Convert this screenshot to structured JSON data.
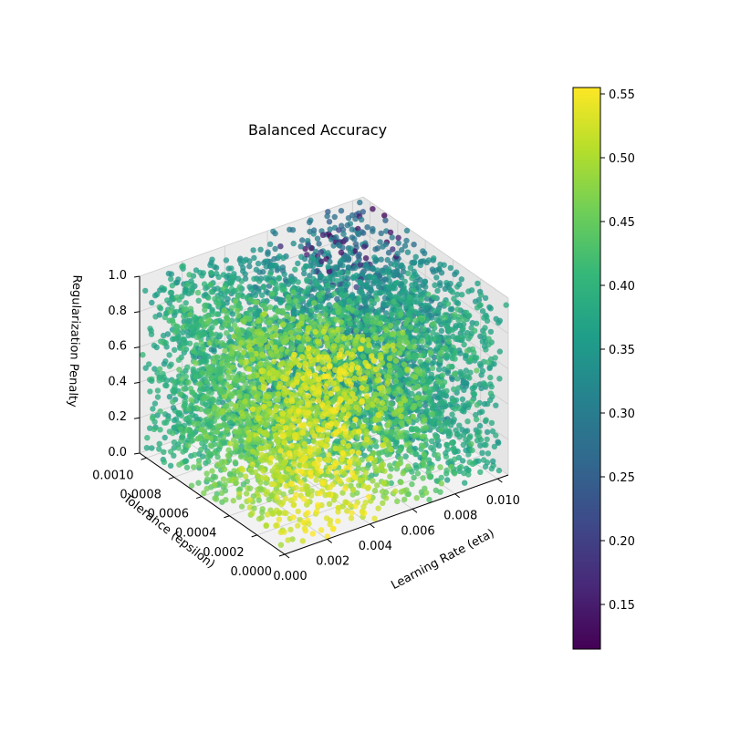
{
  "chart_data": {
    "type": "scatter",
    "projection": "3d",
    "title": "Balanced Accuracy",
    "xlabel": "Learning Rate (eta)",
    "ylabel": "Tolerance (epsilon)",
    "zlabel": "Regularization Penalty",
    "xlim": [
      0.0,
      0.0105
    ],
    "ylim": [
      0.0,
      0.00105
    ],
    "zlim": [
      0.0,
      1.0
    ],
    "x_ticks": [
      "0.000",
      "0.002",
      "0.004",
      "0.006",
      "0.008",
      "0.010"
    ],
    "y_ticks": [
      "0.0000",
      "0.0002",
      "0.0004",
      "0.0006",
      "0.0008",
      "0.0010"
    ],
    "z_ticks": [
      "0.0",
      "0.2",
      "0.4",
      "0.6",
      "0.8",
      "1.0"
    ],
    "point_count": 6000,
    "point_distribution": "x, y, z uniformly sampled over the full axis ranges",
    "color_metric": "balanced accuracy",
    "accuracy_trend": "highest (about 0.50-0.55) at low tolerance and mid-to-low learning rate; lower (about 0.30-0.38) toward high learning rate and high tolerance; lowest values (down to about 0.12) near the top back corner",
    "grid": true,
    "colormap": "viridis",
    "colorbar": {
      "range": [
        0.115,
        0.555
      ],
      "ticks": [
        "0.15",
        "0.20",
        "0.25",
        "0.30",
        "0.35",
        "0.40",
        "0.45",
        "0.50",
        "0.55"
      ],
      "position": "right"
    },
    "colors": {
      "pane": "#f2f2f2",
      "grid": "#cccccc",
      "viridis_stops": [
        "#440154",
        "#482878",
        "#3e4989",
        "#31688e",
        "#26828e",
        "#1f9e89",
        "#35b779",
        "#6ece58",
        "#b5de2b",
        "#fde725"
      ]
    }
  }
}
